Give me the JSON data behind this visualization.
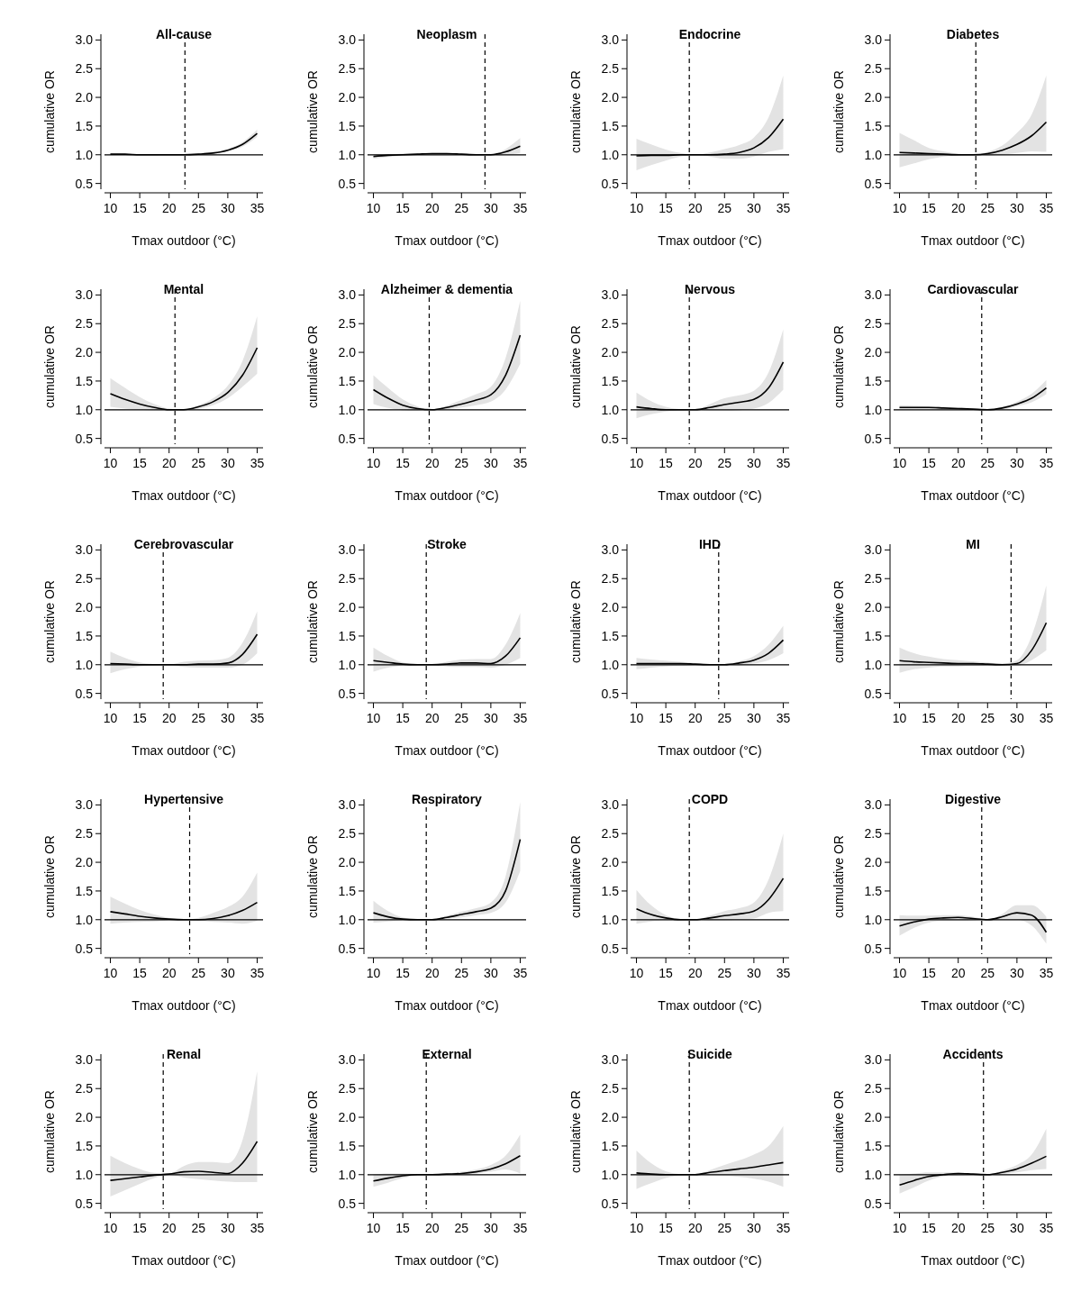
{
  "chart_data": [
    {
      "type": "line",
      "title": "All-cause",
      "xlabel": "Tmax outdoor (°C)",
      "ylabel": "cumulative OR",
      "x": [
        10,
        12.5,
        15,
        17.5,
        20,
        22.5,
        25,
        27.5,
        30,
        32.5,
        35
      ],
      "xlim": [
        9,
        36
      ],
      "xticks": [
        10,
        15,
        20,
        25,
        30,
        35
      ],
      "ylim": [
        0.4,
        3.1
      ],
      "yticks": [
        0.5,
        {
          "value": 1,
          "label": "1.0"
        },
        1.5,
        {
          "value": 2,
          "label": "2.0"
        },
        2.5,
        {
          "value": 3,
          "label": "3.0"
        }
      ],
      "ref_lines": [
        {
          "axis": "x",
          "value": 22.7,
          "line_style": "dashed"
        },
        {
          "axis": "y",
          "value": 1,
          "line_style": "solid"
        }
      ],
      "series": [
        {
          "color": "#000000",
          "values": [
            1.01,
            1.01,
            1.0,
            1.0,
            1.0,
            1.0,
            1.01,
            1.03,
            1.08,
            1.18,
            1.37
          ],
          "lower": [
            1.0,
            1.0,
            0.99,
            0.99,
            1.0,
            1.0,
            1.0,
            1.02,
            1.06,
            1.14,
            1.31
          ],
          "upper": [
            1.03,
            1.02,
            1.01,
            1.01,
            1.0,
            1.0,
            1.02,
            1.05,
            1.1,
            1.22,
            1.44
          ]
        }
      ]
    },
    {
      "type": "line",
      "title": "Neoplasm",
      "xlabel": "Tmax outdoor (°C)",
      "ylabel": "cumulative OR",
      "x": [
        10,
        12.5,
        15,
        17.5,
        20,
        22.5,
        25,
        27.5,
        30,
        32.5,
        35
      ],
      "xlim": [
        9,
        36
      ],
      "xticks": [
        10,
        15,
        20,
        25,
        30,
        35
      ],
      "ylim": [
        0.4,
        3.1
      ],
      "yticks": [
        0.5,
        {
          "value": 1,
          "label": "1.0"
        },
        1.5,
        {
          "value": 2,
          "label": "2.0"
        },
        2.5,
        {
          "value": 3,
          "label": "3.0"
        }
      ],
      "ref_lines": [
        {
          "axis": "x",
          "value": 29,
          "line_style": "dashed"
        },
        {
          "axis": "y",
          "value": 1,
          "line_style": "solid"
        }
      ],
      "series": [
        {
          "color": "#000000",
          "values": [
            0.97,
            0.99,
            1.0,
            1.01,
            1.02,
            1.02,
            1.01,
            1.0,
            1.0,
            1.05,
            1.15
          ],
          "lower": [
            0.93,
            0.96,
            0.98,
            1.0,
            1.01,
            1.01,
            1.0,
            0.99,
            1.0,
            1.0,
            1.03
          ],
          "upper": [
            1.01,
            1.01,
            1.02,
            1.03,
            1.03,
            1.03,
            1.02,
            1.01,
            1.0,
            1.1,
            1.29
          ]
        }
      ]
    },
    {
      "type": "line",
      "title": "Endocrine",
      "xlabel": "Tmax outdoor (°C)",
      "ylabel": "cumulative OR",
      "x": [
        10,
        12.5,
        15,
        17.5,
        20,
        22.5,
        25,
        27.5,
        30,
        32.5,
        35
      ],
      "xlim": [
        9,
        36
      ],
      "xticks": [
        10,
        15,
        20,
        25,
        30,
        35
      ],
      "ylim": [
        0.4,
        3.1
      ],
      "yticks": [
        0.5,
        {
          "value": 1,
          "label": "1.0"
        },
        1.5,
        {
          "value": 2,
          "label": "2.0"
        },
        2.5,
        {
          "value": 3,
          "label": "3.0"
        }
      ],
      "ref_lines": [
        {
          "axis": "x",
          "value": 19,
          "line_style": "dashed"
        },
        {
          "axis": "y",
          "value": 1,
          "line_style": "solid"
        }
      ],
      "series": [
        {
          "color": "#000000",
          "values": [
            0.98,
            0.99,
            0.99,
            1.0,
            1.0,
            1.0,
            1.01,
            1.04,
            1.12,
            1.3,
            1.62
          ],
          "lower": [
            0.73,
            0.82,
            0.9,
            0.97,
            1.0,
            0.97,
            0.93,
            0.93,
            0.97,
            1.05,
            1.1
          ],
          "upper": [
            1.28,
            1.18,
            1.09,
            1.03,
            1.0,
            1.04,
            1.1,
            1.17,
            1.3,
            1.65,
            2.38
          ]
        }
      ]
    },
    {
      "type": "line",
      "title": "Diabetes",
      "xlabel": "Tmax outdoor (°C)",
      "ylabel": "cumulative OR",
      "x": [
        10,
        12.5,
        15,
        17.5,
        20,
        22.5,
        25,
        27.5,
        30,
        32.5,
        35
      ],
      "xlim": [
        9,
        36
      ],
      "xticks": [
        10,
        15,
        20,
        25,
        30,
        35
      ],
      "ylim": [
        0.4,
        3.1
      ],
      "yticks": [
        0.5,
        {
          "value": 1,
          "label": "1.0"
        },
        1.5,
        {
          "value": 2,
          "label": "2.0"
        },
        2.5,
        {
          "value": 3,
          "label": "3.0"
        }
      ],
      "ref_lines": [
        {
          "axis": "x",
          "value": 23,
          "line_style": "dashed"
        },
        {
          "axis": "y",
          "value": 1,
          "line_style": "solid"
        }
      ],
      "series": [
        {
          "color": "#000000",
          "values": [
            1.04,
            1.03,
            1.02,
            1.01,
            1.0,
            1.0,
            1.02,
            1.08,
            1.18,
            1.33,
            1.57
          ],
          "lower": [
            0.78,
            0.85,
            0.92,
            0.97,
            0.99,
            1.0,
            0.99,
            1.0,
            1.03,
            1.06,
            1.05
          ],
          "upper": [
            1.38,
            1.25,
            1.12,
            1.06,
            1.02,
            1.0,
            1.05,
            1.16,
            1.38,
            1.7,
            2.38
          ]
        }
      ]
    },
    {
      "type": "line",
      "title": "Mental",
      "xlabel": "Tmax outdoor (°C)",
      "ylabel": "cumulative OR",
      "x": [
        10,
        12.5,
        15,
        17.5,
        20,
        22.5,
        25,
        27.5,
        30,
        32.5,
        35
      ],
      "xlim": [
        9,
        36
      ],
      "xticks": [
        10,
        15,
        20,
        25,
        30,
        35
      ],
      "ylim": [
        0.4,
        3.1
      ],
      "yticks": [
        0.5,
        {
          "value": 1,
          "label": "1.0"
        },
        1.5,
        {
          "value": 2,
          "label": "2.0"
        },
        2.5,
        {
          "value": 3,
          "label": "3.0"
        }
      ],
      "ref_lines": [
        {
          "axis": "x",
          "value": 21,
          "line_style": "dashed"
        },
        {
          "axis": "y",
          "value": 1,
          "line_style": "solid"
        }
      ],
      "series": [
        {
          "color": "#000000",
          "values": [
            1.28,
            1.18,
            1.1,
            1.04,
            1.0,
            1.0,
            1.05,
            1.14,
            1.3,
            1.6,
            2.08
          ],
          "lower": [
            1.05,
            1.02,
            1.0,
            0.99,
            0.99,
            1.0,
            1.02,
            1.08,
            1.2,
            1.4,
            1.63
          ],
          "upper": [
            1.55,
            1.38,
            1.22,
            1.1,
            1.02,
            1.0,
            1.08,
            1.2,
            1.42,
            1.85,
            2.63
          ]
        }
      ]
    },
    {
      "type": "line",
      "title": "Alzheimer & dementia",
      "xlabel": "Tmax outdoor (°C)",
      "ylabel": "cumulative OR",
      "x": [
        10,
        12.5,
        15,
        17.5,
        20,
        22.5,
        25,
        27.5,
        30,
        32.5,
        35
      ],
      "xlim": [
        9,
        36
      ],
      "xticks": [
        10,
        15,
        20,
        25,
        30,
        35
      ],
      "ylim": [
        0.4,
        3.1
      ],
      "yticks": [
        0.5,
        {
          "value": 1,
          "label": "1.0"
        },
        1.5,
        {
          "value": 2,
          "label": "2.0"
        },
        2.5,
        {
          "value": 3,
          "label": "3.0"
        }
      ],
      "ref_lines": [
        {
          "axis": "x",
          "value": 19.5,
          "line_style": "dashed"
        },
        {
          "axis": "y",
          "value": 1,
          "line_style": "solid"
        }
      ],
      "series": [
        {
          "color": "#000000",
          "values": [
            1.35,
            1.2,
            1.08,
            1.02,
            1.0,
            1.04,
            1.1,
            1.17,
            1.26,
            1.6,
            2.3
          ],
          "lower": [
            1.1,
            1.03,
            0.99,
            0.98,
            1.0,
            1.01,
            1.04,
            1.08,
            1.14,
            1.35,
            1.8
          ],
          "upper": [
            1.6,
            1.38,
            1.18,
            1.06,
            1.0,
            1.07,
            1.17,
            1.27,
            1.4,
            1.9,
            2.9
          ]
        }
      ]
    },
    {
      "type": "line",
      "title": "Nervous",
      "xlabel": "Tmax outdoor (°C)",
      "ylabel": "cumulative OR",
      "x": [
        10,
        12.5,
        15,
        17.5,
        20,
        22.5,
        25,
        27.5,
        30,
        32.5,
        35
      ],
      "xlim": [
        9,
        36
      ],
      "xticks": [
        10,
        15,
        20,
        25,
        30,
        35
      ],
      "ylim": [
        0.4,
        3.1
      ],
      "yticks": [
        0.5,
        {
          "value": 1,
          "label": "1.0"
        },
        1.5,
        {
          "value": 2,
          "label": "2.0"
        },
        2.5,
        {
          "value": 3,
          "label": "3.0"
        }
      ],
      "ref_lines": [
        {
          "axis": "x",
          "value": 19,
          "line_style": "dashed"
        },
        {
          "axis": "y",
          "value": 1,
          "line_style": "solid"
        }
      ],
      "series": [
        {
          "color": "#000000",
          "values": [
            1.05,
            1.02,
            1.0,
            1.0,
            1.0,
            1.04,
            1.09,
            1.13,
            1.18,
            1.38,
            1.83
          ],
          "lower": [
            0.85,
            0.92,
            0.97,
            0.99,
            1.0,
            0.98,
            0.98,
            0.99,
            1.02,
            1.12,
            1.35
          ],
          "upper": [
            1.3,
            1.15,
            1.05,
            1.01,
            1.0,
            1.1,
            1.2,
            1.25,
            1.33,
            1.65,
            2.4
          ]
        }
      ]
    },
    {
      "type": "line",
      "title": "Cardiovascular",
      "xlabel": "Tmax outdoor (°C)",
      "ylabel": "cumulative OR",
      "x": [
        10,
        12.5,
        15,
        17.5,
        20,
        22.5,
        25,
        27.5,
        30,
        32.5,
        35
      ],
      "xlim": [
        9,
        36
      ],
      "xticks": [
        10,
        15,
        20,
        25,
        30,
        35
      ],
      "ylim": [
        0.4,
        3.1
      ],
      "yticks": [
        0.5,
        {
          "value": 1,
          "label": "1.0"
        },
        1.5,
        {
          "value": 2,
          "label": "2.0"
        },
        2.5,
        {
          "value": 3,
          "label": "3.0"
        }
      ],
      "ref_lines": [
        {
          "axis": "x",
          "value": 24,
          "line_style": "dashed"
        },
        {
          "axis": "y",
          "value": 1,
          "line_style": "solid"
        }
      ],
      "series": [
        {
          "color": "#000000",
          "values": [
            1.04,
            1.04,
            1.04,
            1.03,
            1.02,
            1.01,
            1.0,
            1.03,
            1.1,
            1.2,
            1.38
          ],
          "lower": [
            1.0,
            1.01,
            1.01,
            1.01,
            1.0,
            1.0,
            1.0,
            1.01,
            1.06,
            1.13,
            1.27
          ],
          "upper": [
            1.08,
            1.07,
            1.06,
            1.05,
            1.04,
            1.02,
            1.0,
            1.05,
            1.14,
            1.28,
            1.52
          ]
        }
      ]
    },
    {
      "type": "line",
      "title": "Cerebrovascular",
      "xlabel": "Tmax outdoor (°C)",
      "ylabel": "cumulative OR",
      "x": [
        10,
        12.5,
        15,
        17.5,
        20,
        22.5,
        25,
        27.5,
        30,
        32.5,
        35
      ],
      "xlim": [
        9,
        36
      ],
      "xticks": [
        10,
        15,
        20,
        25,
        30,
        35
      ],
      "ylim": [
        0.4,
        3.1
      ],
      "yticks": [
        0.5,
        {
          "value": 1,
          "label": "1.0"
        },
        1.5,
        {
          "value": 2,
          "label": "2.0"
        },
        2.5,
        {
          "value": 3,
          "label": "3.0"
        }
      ],
      "ref_lines": [
        {
          "axis": "x",
          "value": 19,
          "line_style": "dashed"
        },
        {
          "axis": "y",
          "value": 1,
          "line_style": "solid"
        }
      ],
      "series": [
        {
          "color": "#000000",
          "values": [
            1.02,
            1.01,
            1.0,
            1.0,
            1.0,
            1.0,
            1.01,
            1.01,
            1.03,
            1.18,
            1.53
          ],
          "lower": [
            0.85,
            0.92,
            0.97,
            0.99,
            1.0,
            0.96,
            0.95,
            0.95,
            0.95,
            1.0,
            1.2
          ],
          "upper": [
            1.23,
            1.12,
            1.04,
            1.01,
            1.0,
            1.05,
            1.07,
            1.08,
            1.12,
            1.38,
            1.93
          ]
        }
      ]
    },
    {
      "type": "line",
      "title": "Stroke",
      "xlabel": "Tmax outdoor (°C)",
      "ylabel": "cumulative OR",
      "x": [
        10,
        12.5,
        15,
        17.5,
        20,
        22.5,
        25,
        27.5,
        30,
        32.5,
        35
      ],
      "xlim": [
        9,
        36
      ],
      "xticks": [
        10,
        15,
        20,
        25,
        30,
        35
      ],
      "ylim": [
        0.4,
        3.1
      ],
      "yticks": [
        0.5,
        {
          "value": 1,
          "label": "1.0"
        },
        1.5,
        {
          "value": 2,
          "label": "2.0"
        },
        2.5,
        {
          "value": 3,
          "label": "3.0"
        }
      ],
      "ref_lines": [
        {
          "axis": "x",
          "value": 19,
          "line_style": "dashed"
        },
        {
          "axis": "y",
          "value": 1,
          "line_style": "solid"
        }
      ],
      "series": [
        {
          "color": "#000000",
          "values": [
            1.07,
            1.04,
            1.01,
            1.0,
            1.0,
            1.01,
            1.03,
            1.03,
            1.02,
            1.15,
            1.47
          ],
          "lower": [
            0.88,
            0.95,
            0.98,
            0.99,
            1.0,
            0.97,
            0.96,
            0.96,
            0.95,
            1.0,
            1.12
          ],
          "upper": [
            1.3,
            1.15,
            1.04,
            1.01,
            1.0,
            1.05,
            1.09,
            1.1,
            1.1,
            1.35,
            1.9
          ]
        }
      ]
    },
    {
      "type": "line",
      "title": "IHD",
      "xlabel": "Tmax outdoor (°C)",
      "ylabel": "cumulative OR",
      "x": [
        10,
        12.5,
        15,
        17.5,
        20,
        22.5,
        25,
        27.5,
        30,
        32.5,
        35
      ],
      "xlim": [
        9,
        36
      ],
      "xticks": [
        10,
        15,
        20,
        25,
        30,
        35
      ],
      "ylim": [
        0.4,
        3.1
      ],
      "yticks": [
        0.5,
        {
          "value": 1,
          "label": "1.0"
        },
        1.5,
        {
          "value": 2,
          "label": "2.0"
        },
        2.5,
        {
          "value": 3,
          "label": "3.0"
        }
      ],
      "ref_lines": [
        {
          "axis": "x",
          "value": 24,
          "line_style": "dashed"
        },
        {
          "axis": "y",
          "value": 1,
          "line_style": "solid"
        }
      ],
      "series": [
        {
          "color": "#000000",
          "values": [
            1.02,
            1.02,
            1.02,
            1.02,
            1.01,
            1.0,
            1.0,
            1.03,
            1.08,
            1.2,
            1.43
          ],
          "lower": [
            0.92,
            0.95,
            0.97,
            0.98,
            0.99,
            1.0,
            1.0,
            1.0,
            1.02,
            1.08,
            1.2
          ],
          "upper": [
            1.12,
            1.09,
            1.07,
            1.05,
            1.03,
            1.01,
            1.0,
            1.06,
            1.15,
            1.35,
            1.68
          ]
        }
      ]
    },
    {
      "type": "line",
      "title": "MI",
      "xlabel": "Tmax outdoor (°C)",
      "ylabel": "cumulative OR",
      "x": [
        10,
        12.5,
        15,
        17.5,
        20,
        22.5,
        25,
        27.5,
        30,
        32.5,
        35
      ],
      "xlim": [
        9,
        36
      ],
      "xticks": [
        10,
        15,
        20,
        25,
        30,
        35
      ],
      "ylim": [
        0.4,
        3.1
      ],
      "yticks": [
        0.5,
        {
          "value": 1,
          "label": "1.0"
        },
        1.5,
        {
          "value": 2,
          "label": "2.0"
        },
        2.5,
        {
          "value": 3,
          "label": "3.0"
        }
      ],
      "ref_lines": [
        {
          "axis": "x",
          "value": 29,
          "line_style": "dashed"
        },
        {
          "axis": "y",
          "value": 1,
          "line_style": "solid"
        }
      ],
      "series": [
        {
          "color": "#000000",
          "values": [
            1.07,
            1.05,
            1.04,
            1.03,
            1.02,
            1.02,
            1.01,
            1.0,
            1.02,
            1.25,
            1.73
          ],
          "lower": [
            0.86,
            0.92,
            0.95,
            0.97,
            0.97,
            0.98,
            0.98,
            0.99,
            0.98,
            1.08,
            1.25
          ],
          "upper": [
            1.3,
            1.2,
            1.14,
            1.1,
            1.08,
            1.06,
            1.04,
            1.02,
            1.08,
            1.5,
            2.38
          ]
        }
      ]
    },
    {
      "type": "line",
      "title": "Hypertensive",
      "xlabel": "Tmax outdoor (°C)",
      "ylabel": "cumulative OR",
      "x": [
        10,
        12.5,
        15,
        17.5,
        20,
        22.5,
        25,
        27.5,
        30,
        32.5,
        35
      ],
      "xlim": [
        9,
        36
      ],
      "xticks": [
        10,
        15,
        20,
        25,
        30,
        35
      ],
      "ylim": [
        0.4,
        3.1
      ],
      "yticks": [
        0.5,
        {
          "value": 1,
          "label": "1.0"
        },
        1.5,
        {
          "value": 2,
          "label": "2.0"
        },
        2.5,
        {
          "value": 3,
          "label": "3.0"
        }
      ],
      "ref_lines": [
        {
          "axis": "x",
          "value": 23.5,
          "line_style": "dashed"
        },
        {
          "axis": "y",
          "value": 1,
          "line_style": "solid"
        }
      ],
      "series": [
        {
          "color": "#000000",
          "values": [
            1.14,
            1.1,
            1.06,
            1.03,
            1.01,
            1.0,
            1.0,
            1.02,
            1.07,
            1.16,
            1.3
          ],
          "lower": [
            0.93,
            0.95,
            0.96,
            0.97,
            0.99,
            1.0,
            0.99,
            0.96,
            0.95,
            0.93,
            0.98
          ],
          "upper": [
            1.4,
            1.28,
            1.17,
            1.09,
            1.03,
            1.0,
            1.03,
            1.12,
            1.22,
            1.4,
            1.82
          ]
        }
      ]
    },
    {
      "type": "line",
      "title": "Respiratory",
      "xlabel": "Tmax outdoor (°C)",
      "ylabel": "cumulative OR",
      "x": [
        10,
        12.5,
        15,
        17.5,
        20,
        22.5,
        25,
        27.5,
        30,
        32.5,
        35
      ],
      "xlim": [
        9,
        36
      ],
      "xticks": [
        10,
        15,
        20,
        25,
        30,
        35
      ],
      "ylim": [
        0.4,
        3.1
      ],
      "yticks": [
        0.5,
        {
          "value": 1,
          "label": "1.0"
        },
        1.5,
        {
          "value": 2,
          "label": "2.0"
        },
        2.5,
        {
          "value": 3,
          "label": "3.0"
        }
      ],
      "ref_lines": [
        {
          "axis": "x",
          "value": 19,
          "line_style": "dashed"
        },
        {
          "axis": "y",
          "value": 1,
          "line_style": "solid"
        }
      ],
      "series": [
        {
          "color": "#000000",
          "values": [
            1.12,
            1.05,
            1.01,
            1.0,
            1.0,
            1.04,
            1.09,
            1.14,
            1.2,
            1.5,
            2.4
          ],
          "lower": [
            0.95,
            0.97,
            0.99,
            0.99,
            1.0,
            1.02,
            1.04,
            1.08,
            1.12,
            1.3,
            1.85
          ],
          "upper": [
            1.33,
            1.15,
            1.04,
            1.01,
            1.0,
            1.07,
            1.14,
            1.2,
            1.3,
            1.75,
            3.05
          ]
        }
      ]
    },
    {
      "type": "line",
      "title": "COPD",
      "xlabel": "Tmax outdoor (°C)",
      "ylabel": "cumulative OR",
      "x": [
        10,
        12.5,
        15,
        17.5,
        20,
        22.5,
        25,
        27.5,
        30,
        32.5,
        35
      ],
      "xlim": [
        9,
        36
      ],
      "xticks": [
        10,
        15,
        20,
        25,
        30,
        35
      ],
      "ylim": [
        0.4,
        3.1
      ],
      "yticks": [
        0.5,
        {
          "value": 1,
          "label": "1.0"
        },
        1.5,
        {
          "value": 2,
          "label": "2.0"
        },
        2.5,
        {
          "value": 3,
          "label": "3.0"
        }
      ],
      "ref_lines": [
        {
          "axis": "x",
          "value": 19,
          "line_style": "dashed"
        },
        {
          "axis": "y",
          "value": 1,
          "line_style": "solid"
        }
      ],
      "series": [
        {
          "color": "#000000",
          "values": [
            1.19,
            1.09,
            1.03,
            1.0,
            1.0,
            1.03,
            1.07,
            1.1,
            1.15,
            1.35,
            1.72
          ],
          "lower": [
            0.93,
            0.97,
            0.99,
            0.99,
            1.0,
            0.99,
            0.99,
            1.0,
            1.02,
            1.12,
            1.15
          ],
          "upper": [
            1.52,
            1.25,
            1.08,
            1.01,
            1.0,
            1.07,
            1.15,
            1.2,
            1.3,
            1.7,
            2.5
          ]
        }
      ]
    },
    {
      "type": "line",
      "title": "Digestive",
      "xlabel": "Tmax outdoor (°C)",
      "ylabel": "cumulative OR",
      "x": [
        10,
        12.5,
        15,
        17.5,
        20,
        22.5,
        25,
        27.5,
        30,
        32.5,
        35
      ],
      "xlim": [
        9,
        36
      ],
      "xticks": [
        10,
        15,
        20,
        25,
        30,
        35
      ],
      "ylim": [
        0.4,
        3.1
      ],
      "yticks": [
        0.5,
        {
          "value": 1,
          "label": "1.0"
        },
        1.5,
        {
          "value": 2,
          "label": "2.0"
        },
        2.5,
        {
          "value": 3,
          "label": "3.0"
        }
      ],
      "ref_lines": [
        {
          "axis": "x",
          "value": 24,
          "line_style": "dashed"
        },
        {
          "axis": "y",
          "value": 1,
          "line_style": "solid"
        }
      ],
      "series": [
        {
          "color": "#000000",
          "values": [
            0.89,
            0.96,
            1.01,
            1.03,
            1.04,
            1.02,
            1.0,
            1.05,
            1.12,
            1.08,
            0.78
          ],
          "lower": [
            0.72,
            0.86,
            0.95,
            0.98,
            0.98,
            0.99,
            1.0,
            1.01,
            1.0,
            0.9,
            0.58
          ],
          "upper": [
            1.08,
            1.07,
            1.07,
            1.08,
            1.08,
            1.05,
            1.0,
            1.1,
            1.25,
            1.25,
            1.05
          ]
        }
      ]
    },
    {
      "type": "line",
      "title": "Renal",
      "xlabel": "Tmax outdoor (°C)",
      "ylabel": "cumulative OR",
      "x": [
        10,
        12.5,
        15,
        17.5,
        20,
        22.5,
        25,
        27.5,
        30,
        32.5,
        35
      ],
      "xlim": [
        9,
        36
      ],
      "xticks": [
        10,
        15,
        20,
        25,
        30,
        35
      ],
      "ylim": [
        0.4,
        3.1
      ],
      "yticks": [
        0.5,
        {
          "value": 1,
          "label": "1.0"
        },
        1.5,
        {
          "value": 2,
          "label": "2.0"
        },
        2.5,
        {
          "value": 3,
          "label": "3.0"
        }
      ],
      "ref_lines": [
        {
          "axis": "x",
          "value": 19,
          "line_style": "dashed"
        },
        {
          "axis": "y",
          "value": 1,
          "line_style": "solid"
        }
      ],
      "series": [
        {
          "color": "#000000",
          "values": [
            0.9,
            0.93,
            0.96,
            0.99,
            1.01,
            1.05,
            1.06,
            1.04,
            1.02,
            1.2,
            1.58
          ],
          "lower": [
            0.62,
            0.73,
            0.84,
            0.94,
            1.0,
            0.95,
            0.92,
            0.9,
            0.88,
            0.87,
            0.87
          ],
          "upper": [
            1.33,
            1.2,
            1.1,
            1.03,
            1.02,
            1.15,
            1.22,
            1.22,
            1.2,
            1.6,
            2.8
          ]
        }
      ]
    },
    {
      "type": "line",
      "title": "External",
      "xlabel": "Tmax outdoor (°C)",
      "ylabel": "cumulative OR",
      "x": [
        10,
        12.5,
        15,
        17.5,
        20,
        22.5,
        25,
        27.5,
        30,
        32.5,
        35
      ],
      "xlim": [
        9,
        36
      ],
      "xticks": [
        10,
        15,
        20,
        25,
        30,
        35
      ],
      "ylim": [
        0.4,
        3.1
      ],
      "yticks": [
        0.5,
        {
          "value": 1,
          "label": "1.0"
        },
        1.5,
        {
          "value": 2,
          "label": "2.0"
        },
        2.5,
        {
          "value": 3,
          "label": "3.0"
        }
      ],
      "ref_lines": [
        {
          "axis": "x",
          "value": 19,
          "line_style": "dashed"
        },
        {
          "axis": "y",
          "value": 1,
          "line_style": "solid"
        }
      ],
      "series": [
        {
          "color": "#000000",
          "values": [
            0.89,
            0.94,
            0.98,
            1.0,
            1.0,
            1.01,
            1.02,
            1.05,
            1.1,
            1.19,
            1.33
          ],
          "lower": [
            0.79,
            0.86,
            0.94,
            0.99,
            1.0,
            1.0,
            1.0,
            1.02,
            1.05,
            1.09,
            1.02
          ],
          "upper": [
            1.0,
            1.02,
            1.02,
            1.01,
            1.0,
            1.02,
            1.05,
            1.09,
            1.17,
            1.33,
            1.7
          ]
        }
      ]
    },
    {
      "type": "line",
      "title": "Suicide",
      "xlabel": "Tmax outdoor (°C)",
      "ylabel": "cumulative OR",
      "x": [
        10,
        12.5,
        15,
        17.5,
        20,
        22.5,
        25,
        27.5,
        30,
        32.5,
        35
      ],
      "xlim": [
        9,
        36
      ],
      "xticks": [
        10,
        15,
        20,
        25,
        30,
        35
      ],
      "ylim": [
        0.4,
        3.1
      ],
      "yticks": [
        0.5,
        {
          "value": 1,
          "label": "1.0"
        },
        1.5,
        {
          "value": 2,
          "label": "2.0"
        },
        2.5,
        {
          "value": 3,
          "label": "3.0"
        }
      ],
      "ref_lines": [
        {
          "axis": "x",
          "value": 19,
          "line_style": "dashed"
        },
        {
          "axis": "y",
          "value": 1,
          "line_style": "solid"
        }
      ],
      "series": [
        {
          "color": "#000000",
          "values": [
            1.03,
            1.01,
            1.0,
            1.0,
            1.0,
            1.04,
            1.07,
            1.1,
            1.13,
            1.17,
            1.21
          ],
          "lower": [
            0.75,
            0.85,
            0.94,
            0.99,
            1.0,
            0.99,
            0.98,
            0.96,
            0.93,
            0.88,
            0.79
          ],
          "upper": [
            1.42,
            1.2,
            1.06,
            1.01,
            1.0,
            1.08,
            1.17,
            1.25,
            1.35,
            1.5,
            1.85
          ]
        }
      ]
    },
    {
      "type": "line",
      "title": "Accidents",
      "xlabel": "Tmax outdoor (°C)",
      "ylabel": "cumulative OR",
      "x": [
        10,
        12.5,
        15,
        17.5,
        20,
        22.5,
        25,
        27.5,
        30,
        32.5,
        35
      ],
      "xlim": [
        9,
        36
      ],
      "xticks": [
        10,
        15,
        20,
        25,
        30,
        35
      ],
      "ylim": [
        0.4,
        3.1
      ],
      "yticks": [
        0.5,
        {
          "value": 1,
          "label": "1.0"
        },
        1.5,
        {
          "value": 2,
          "label": "2.0"
        },
        2.5,
        {
          "value": 3,
          "label": "3.0"
        }
      ],
      "ref_lines": [
        {
          "axis": "x",
          "value": 24.3,
          "line_style": "dashed"
        },
        {
          "axis": "y",
          "value": 1,
          "line_style": "solid"
        }
      ],
      "series": [
        {
          "color": "#000000",
          "values": [
            0.82,
            0.9,
            0.97,
            1.0,
            1.02,
            1.01,
            1.0,
            1.04,
            1.1,
            1.2,
            1.32
          ],
          "lower": [
            0.67,
            0.78,
            0.9,
            0.97,
            0.99,
            1.0,
            1.0,
            1.01,
            1.04,
            1.08,
            1.1
          ],
          "upper": [
            1.0,
            1.02,
            1.04,
            1.04,
            1.04,
            1.02,
            1.0,
            1.07,
            1.17,
            1.35,
            1.8
          ]
        }
      ]
    }
  ]
}
